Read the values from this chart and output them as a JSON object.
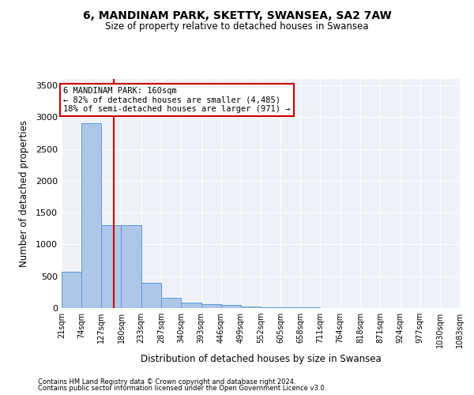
{
  "title1": "6, MANDINAM PARK, SKETTY, SWANSEA, SA2 7AW",
  "title2": "Size of property relative to detached houses in Swansea",
  "xlabel": "Distribution of detached houses by size in Swansea",
  "ylabel": "Number of detached properties",
  "footnote1": "Contains HM Land Registry data © Crown copyright and database right 2024.",
  "footnote2": "Contains public sector information licensed under the Open Government Licence v3.0.",
  "annotation_line1": "6 MANDINAM PARK: 160sqm",
  "annotation_line2": "← 82% of detached houses are smaller (4,485)",
  "annotation_line3": "18% of semi-detached houses are larger (971) →",
  "property_size": 160,
  "bin_edges": [
    21,
    74,
    127,
    180,
    233,
    287,
    340,
    393,
    446,
    499,
    552,
    605,
    658,
    711,
    764,
    818,
    871,
    924,
    977,
    1030,
    1083
  ],
  "bar_heights": [
    570,
    2900,
    1300,
    1300,
    400,
    160,
    90,
    60,
    45,
    25,
    15,
    10,
    8,
    5,
    4,
    3,
    3,
    2,
    2,
    2
  ],
  "bar_color": "#aec6e8",
  "bar_edge_color": "#5b9bd5",
  "background_color": "#eef2f8",
  "vline_color": "#cc0000",
  "annotation_box_color": "#cc0000",
  "ylim": [
    0,
    3600
  ],
  "yticks": [
    0,
    500,
    1000,
    1500,
    2000,
    2500,
    3000,
    3500
  ]
}
